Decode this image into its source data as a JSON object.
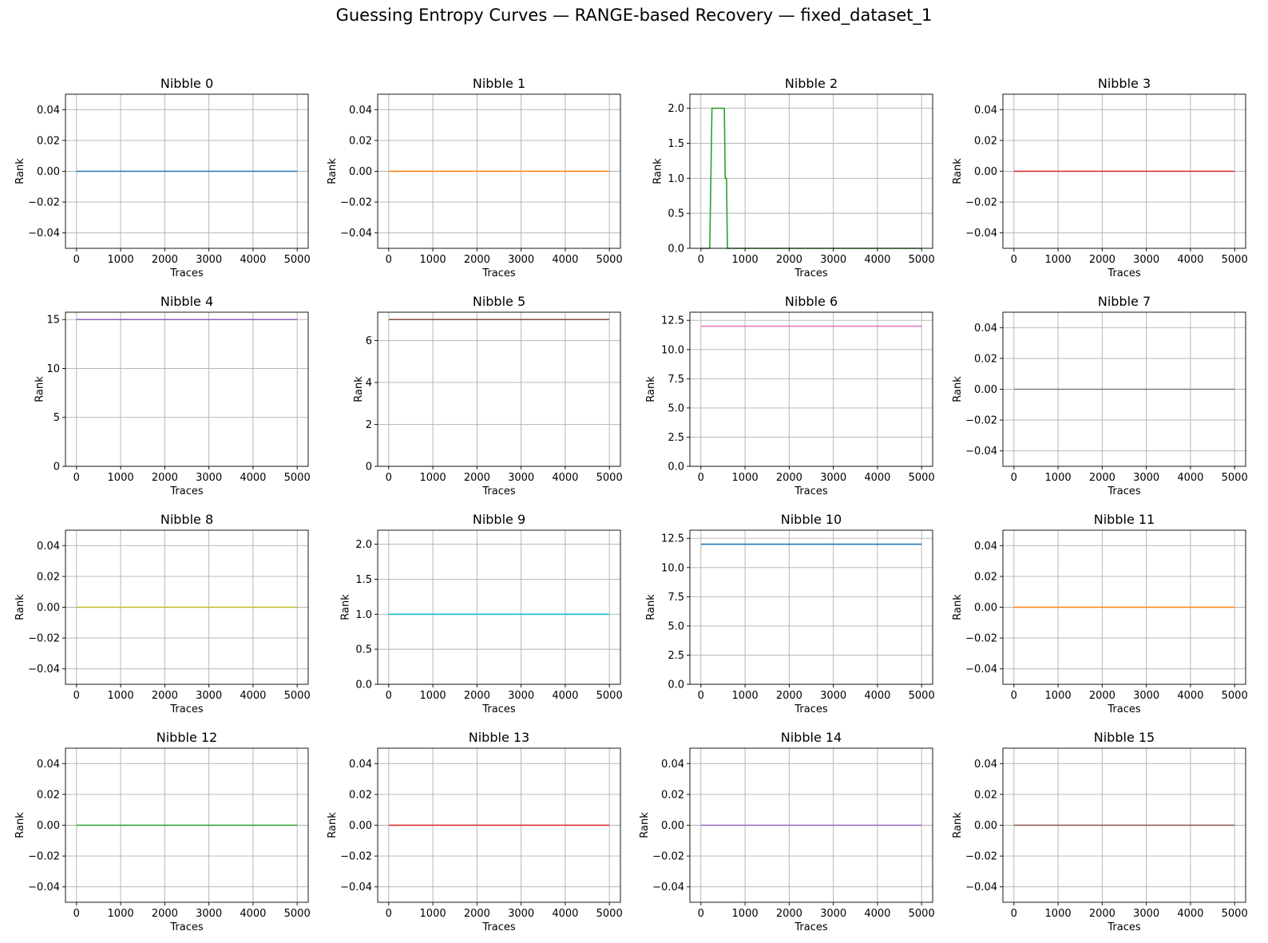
{
  "figure": {
    "title": "Guessing Entropy Curves — RANGE-based Recovery — fixed_dataset_1",
    "layout": "4x4 grid"
  },
  "chart_data": [
    {
      "type": "line",
      "title": "Nibble 0",
      "xlabel": "Traces",
      "ylabel": "Rank",
      "color": "#1f77b4",
      "xlim": [
        -250,
        5250
      ],
      "ylim": [
        -0.05,
        0.05
      ],
      "xticks": [
        0,
        1000,
        2000,
        3000,
        4000,
        5000
      ],
      "xtick_labels": [
        "0",
        "1000",
        "2000",
        "3000",
        "4000",
        "5000"
      ],
      "yticks": [
        -0.04,
        -0.02,
        0,
        0.02,
        0.04
      ],
      "ytick_labels": [
        "−0.04",
        "−0.02",
        "0.00",
        "0.02",
        "0.04"
      ],
      "grid": true,
      "x": [
        0,
        5000
      ],
      "y": [
        0,
        0
      ]
    },
    {
      "type": "line",
      "title": "Nibble 1",
      "xlabel": "Traces",
      "ylabel": "Rank",
      "color": "#ff7f0e",
      "xlim": [
        -250,
        5250
      ],
      "ylim": [
        -0.05,
        0.05
      ],
      "xticks": [
        0,
        1000,
        2000,
        3000,
        4000,
        5000
      ],
      "xtick_labels": [
        "0",
        "1000",
        "2000",
        "3000",
        "4000",
        "5000"
      ],
      "yticks": [
        -0.04,
        -0.02,
        0,
        0.02,
        0.04
      ],
      "ytick_labels": [
        "−0.04",
        "−0.02",
        "0.00",
        "0.02",
        "0.04"
      ],
      "grid": true,
      "x": [
        0,
        5000
      ],
      "y": [
        0,
        0
      ]
    },
    {
      "type": "line",
      "title": "Nibble 2",
      "xlabel": "Traces",
      "ylabel": "Rank",
      "color": "#2ca02c",
      "xlim": [
        -250,
        5250
      ],
      "ylim": [
        0,
        2.2
      ],
      "xticks": [
        0,
        1000,
        2000,
        3000,
        4000,
        5000
      ],
      "xtick_labels": [
        "0",
        "1000",
        "2000",
        "3000",
        "4000",
        "5000"
      ],
      "yticks": [
        0,
        0.5,
        1,
        1.5,
        2
      ],
      "ytick_labels": [
        "0.0",
        "0.5",
        "1.0",
        "1.5",
        "2.0"
      ],
      "grid": true,
      "x": [
        0,
        150,
        200,
        250,
        530,
        550,
        580,
        600,
        5000
      ],
      "y": [
        0,
        0,
        0,
        2,
        2,
        1,
        1,
        0,
        0
      ]
    },
    {
      "type": "line",
      "title": "Nibble 3",
      "xlabel": "Traces",
      "ylabel": "Rank",
      "color": "#d62728",
      "xlim": [
        -250,
        5250
      ],
      "ylim": [
        -0.05,
        0.05
      ],
      "xticks": [
        0,
        1000,
        2000,
        3000,
        4000,
        5000
      ],
      "xtick_labels": [
        "0",
        "1000",
        "2000",
        "3000",
        "4000",
        "5000"
      ],
      "yticks": [
        -0.04,
        -0.02,
        0,
        0.02,
        0.04
      ],
      "ytick_labels": [
        "−0.04",
        "−0.02",
        "0.00",
        "0.02",
        "0.04"
      ],
      "grid": true,
      "x": [
        0,
        5000
      ],
      "y": [
        0,
        0
      ]
    },
    {
      "type": "line",
      "title": "Nibble 4",
      "xlabel": "Traces",
      "ylabel": "Rank",
      "color": "#9467bd",
      "xlim": [
        -250,
        5250
      ],
      "ylim": [
        0,
        15.75
      ],
      "xticks": [
        0,
        1000,
        2000,
        3000,
        4000,
        5000
      ],
      "xtick_labels": [
        "0",
        "1000",
        "2000",
        "3000",
        "4000",
        "5000"
      ],
      "yticks": [
        0,
        5,
        10,
        15
      ],
      "ytick_labels": [
        "0",
        "5",
        "10",
        "15"
      ],
      "grid": true,
      "x": [
        0,
        5000
      ],
      "y": [
        15,
        15
      ]
    },
    {
      "type": "line",
      "title": "Nibble 5",
      "xlabel": "Traces",
      "ylabel": "Rank",
      "color": "#8c564b",
      "xlim": [
        -250,
        5250
      ],
      "ylim": [
        0,
        7.35
      ],
      "xticks": [
        0,
        1000,
        2000,
        3000,
        4000,
        5000
      ],
      "xtick_labels": [
        "0",
        "1000",
        "2000",
        "3000",
        "4000",
        "5000"
      ],
      "yticks": [
        0,
        2,
        4,
        6
      ],
      "ytick_labels": [
        "0",
        "2",
        "4",
        "6"
      ],
      "grid": true,
      "x": [
        0,
        5000
      ],
      "y": [
        7,
        7
      ]
    },
    {
      "type": "line",
      "title": "Nibble 6",
      "xlabel": "Traces",
      "ylabel": "Rank",
      "color": "#e377c2",
      "xlim": [
        -250,
        5250
      ],
      "ylim": [
        0,
        13.2
      ],
      "xticks": [
        0,
        1000,
        2000,
        3000,
        4000,
        5000
      ],
      "xtick_labels": [
        "0",
        "1000",
        "2000",
        "3000",
        "4000",
        "5000"
      ],
      "yticks": [
        0,
        2.5,
        5,
        7.5,
        10,
        12.5
      ],
      "ytick_labels": [
        "0.0",
        "2.5",
        "5.0",
        "7.5",
        "10.0",
        "12.5"
      ],
      "grid": true,
      "x": [
        0,
        5000
      ],
      "y": [
        12,
        12
      ]
    },
    {
      "type": "line",
      "title": "Nibble 7",
      "xlabel": "Traces",
      "ylabel": "Rank",
      "color": "#7f7f7f",
      "xlim": [
        -250,
        5250
      ],
      "ylim": [
        -0.05,
        0.05
      ],
      "xticks": [
        0,
        1000,
        2000,
        3000,
        4000,
        5000
      ],
      "xtick_labels": [
        "0",
        "1000",
        "2000",
        "3000",
        "4000",
        "5000"
      ],
      "yticks": [
        -0.04,
        -0.02,
        0,
        0.02,
        0.04
      ],
      "ytick_labels": [
        "−0.04",
        "−0.02",
        "0.00",
        "0.02",
        "0.04"
      ],
      "grid": true,
      "x": [
        0,
        5000
      ],
      "y": [
        0,
        0
      ]
    },
    {
      "type": "line",
      "title": "Nibble 8",
      "xlabel": "Traces",
      "ylabel": "Rank",
      "color": "#bcbd22",
      "xlim": [
        -250,
        5250
      ],
      "ylim": [
        -0.05,
        0.05
      ],
      "xticks": [
        0,
        1000,
        2000,
        3000,
        4000,
        5000
      ],
      "xtick_labels": [
        "0",
        "1000",
        "2000",
        "3000",
        "4000",
        "5000"
      ],
      "yticks": [
        -0.04,
        -0.02,
        0,
        0.02,
        0.04
      ],
      "ytick_labels": [
        "−0.04",
        "−0.02",
        "0.00",
        "0.02",
        "0.04"
      ],
      "grid": true,
      "x": [
        0,
        5000
      ],
      "y": [
        0,
        0
      ]
    },
    {
      "type": "line",
      "title": "Nibble 9",
      "xlabel": "Traces",
      "ylabel": "Rank",
      "color": "#17becf",
      "xlim": [
        -250,
        5250
      ],
      "ylim": [
        0,
        2.2
      ],
      "xticks": [
        0,
        1000,
        2000,
        3000,
        4000,
        5000
      ],
      "xtick_labels": [
        "0",
        "1000",
        "2000",
        "3000",
        "4000",
        "5000"
      ],
      "yticks": [
        0,
        0.5,
        1,
        1.5,
        2
      ],
      "ytick_labels": [
        "0.0",
        "0.5",
        "1.0",
        "1.5",
        "2.0"
      ],
      "grid": true,
      "x": [
        0,
        5000
      ],
      "y": [
        1,
        1
      ]
    },
    {
      "type": "line",
      "title": "Nibble 10",
      "xlabel": "Traces",
      "ylabel": "Rank",
      "color": "#1f77b4",
      "xlim": [
        -250,
        5250
      ],
      "ylim": [
        0,
        13.2
      ],
      "xticks": [
        0,
        1000,
        2000,
        3000,
        4000,
        5000
      ],
      "xtick_labels": [
        "0",
        "1000",
        "2000",
        "3000",
        "4000",
        "5000"
      ],
      "yticks": [
        0,
        2.5,
        5,
        7.5,
        10,
        12.5
      ],
      "ytick_labels": [
        "0.0",
        "2.5",
        "5.0",
        "7.5",
        "10.0",
        "12.5"
      ],
      "grid": true,
      "x": [
        0,
        5000
      ],
      "y": [
        12,
        12
      ]
    },
    {
      "type": "line",
      "title": "Nibble 11",
      "xlabel": "Traces",
      "ylabel": "Rank",
      "color": "#ff7f0e",
      "xlim": [
        -250,
        5250
      ],
      "ylim": [
        -0.05,
        0.05
      ],
      "xticks": [
        0,
        1000,
        2000,
        3000,
        4000,
        5000
      ],
      "xtick_labels": [
        "0",
        "1000",
        "2000",
        "3000",
        "4000",
        "5000"
      ],
      "yticks": [
        -0.04,
        -0.02,
        0,
        0.02,
        0.04
      ],
      "ytick_labels": [
        "−0.04",
        "−0.02",
        "0.00",
        "0.02",
        "0.04"
      ],
      "grid": true,
      "x": [
        0,
        5000
      ],
      "y": [
        0,
        0
      ]
    },
    {
      "type": "line",
      "title": "Nibble 12",
      "xlabel": "Traces",
      "ylabel": "Rank",
      "color": "#2ca02c",
      "xlim": [
        -250,
        5250
      ],
      "ylim": [
        -0.05,
        0.05
      ],
      "xticks": [
        0,
        1000,
        2000,
        3000,
        4000,
        5000
      ],
      "xtick_labels": [
        "0",
        "1000",
        "2000",
        "3000",
        "4000",
        "5000"
      ],
      "yticks": [
        -0.04,
        -0.02,
        0,
        0.02,
        0.04
      ],
      "ytick_labels": [
        "−0.04",
        "−0.02",
        "0.00",
        "0.02",
        "0.04"
      ],
      "grid": true,
      "x": [
        0,
        5000
      ],
      "y": [
        0,
        0
      ]
    },
    {
      "type": "line",
      "title": "Nibble 13",
      "xlabel": "Traces",
      "ylabel": "Rank",
      "color": "#d62728",
      "xlim": [
        -250,
        5250
      ],
      "ylim": [
        -0.05,
        0.05
      ],
      "xticks": [
        0,
        1000,
        2000,
        3000,
        4000,
        5000
      ],
      "xtick_labels": [
        "0",
        "1000",
        "2000",
        "3000",
        "4000",
        "5000"
      ],
      "yticks": [
        -0.04,
        -0.02,
        0,
        0.02,
        0.04
      ],
      "ytick_labels": [
        "−0.04",
        "−0.02",
        "0.00",
        "0.02",
        "0.04"
      ],
      "grid": true,
      "x": [
        0,
        5000
      ],
      "y": [
        0,
        0
      ]
    },
    {
      "type": "line",
      "title": "Nibble 14",
      "xlabel": "Traces",
      "ylabel": "Rank",
      "color": "#9467bd",
      "xlim": [
        -250,
        5250
      ],
      "ylim": [
        -0.05,
        0.05
      ],
      "xticks": [
        0,
        1000,
        2000,
        3000,
        4000,
        5000
      ],
      "xtick_labels": [
        "0",
        "1000",
        "2000",
        "3000",
        "4000",
        "5000"
      ],
      "yticks": [
        -0.04,
        -0.02,
        0,
        0.02,
        0.04
      ],
      "ytick_labels": [
        "−0.04",
        "−0.02",
        "0.00",
        "0.02",
        "0.04"
      ],
      "grid": true,
      "x": [
        0,
        5000
      ],
      "y": [
        0,
        0
      ]
    },
    {
      "type": "line",
      "title": "Nibble 15",
      "xlabel": "Traces",
      "ylabel": "Rank",
      "color": "#8c564b",
      "xlim": [
        -250,
        5250
      ],
      "ylim": [
        -0.05,
        0.05
      ],
      "xticks": [
        0,
        1000,
        2000,
        3000,
        4000,
        5000
      ],
      "xtick_labels": [
        "0",
        "1000",
        "2000",
        "3000",
        "4000",
        "5000"
      ],
      "yticks": [
        -0.04,
        -0.02,
        0,
        0.02,
        0.04
      ],
      "ytick_labels": [
        "−0.04",
        "−0.02",
        "0.00",
        "0.02",
        "0.04"
      ],
      "grid": true,
      "x": [
        0,
        5000
      ],
      "y": [
        0,
        0
      ]
    }
  ]
}
